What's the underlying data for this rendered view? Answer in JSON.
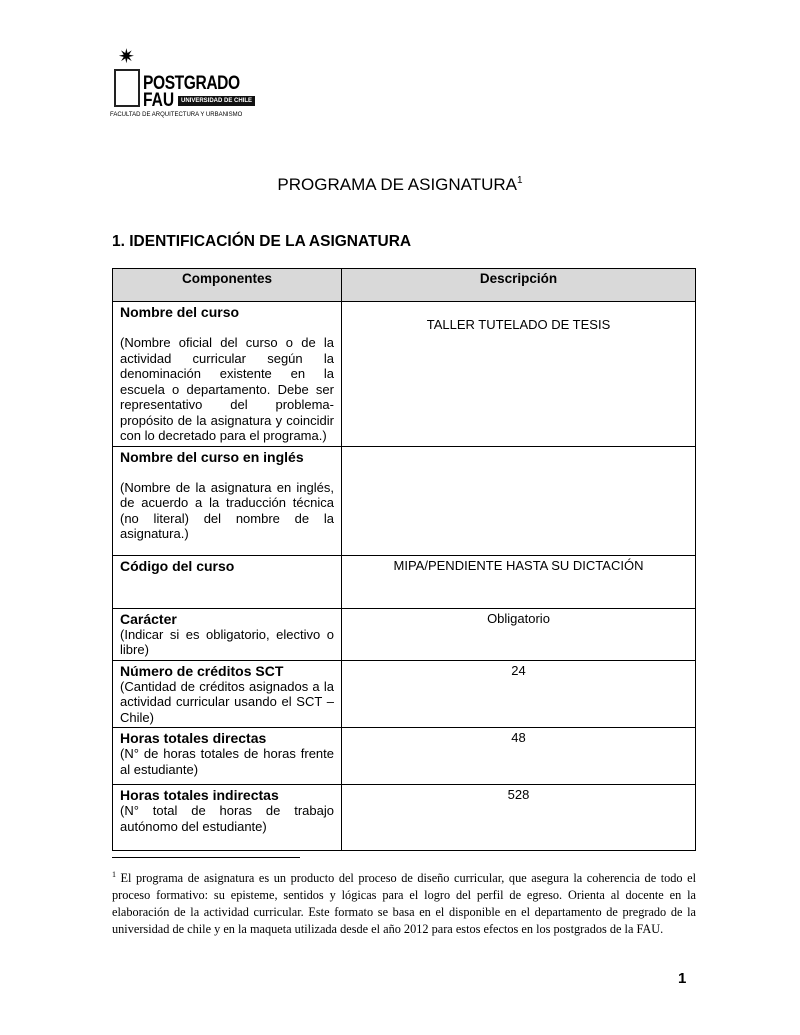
{
  "logo": {
    "star": "✷",
    "line1": "POSTGRADO",
    "line2": "FAU",
    "badge": "UNIVERSIDAD DE CHILE",
    "faculty": "FACULTAD DE ARQUITECTURA Y URBANISMO"
  },
  "title": "PROGRAMA DE ASIGNATURA",
  "title_note": "1",
  "section": "1. IDENTIFICACIÓN DE LA ASIGNATURA",
  "table": {
    "headers": [
      "Componentes",
      "Descripción"
    ],
    "rows": [
      {
        "name": "Nombre del curso",
        "desc": "(Nombre oficial del curso o de la actividad curricular según la denominación existente en la escuela o departamento. Debe ser representativo del problema-propósito de la asignatura y coincidir con lo decretado para el programa.)",
        "value": "TALLER TUTELADO DE TESIS"
      },
      {
        "name": "Nombre del curso en inglés",
        "desc": "(Nombre de la asignatura en inglés, de acuerdo a la traducción técnica (no literal) del nombre de la asignatura.)",
        "value": ""
      },
      {
        "name": "Código del curso",
        "desc": "",
        "value": "MIPA/PENDIENTE HASTA SU DICTACIÓN"
      },
      {
        "name": "Carácter",
        "desc": "(Indicar si es obligatorio, electivo o libre)",
        "value": "Obligatorio"
      },
      {
        "name": "Número de créditos SCT",
        "desc": "(Cantidad de créditos asignados a la actividad curricular usando el SCT – Chile)",
        "value": "24"
      },
      {
        "name": "Horas totales directas",
        "desc": "(N° de horas totales de horas frente al estudiante)",
        "value": "48"
      },
      {
        "name": "Horas totales indirectas",
        "desc": "(N° total de horas de trabajo autónomo del estudiante)",
        "value": "528"
      }
    ]
  },
  "footnote": {
    "mark": "1",
    "text": " El programa de asignatura es un producto del proceso de diseño curricular, que asegura la coherencia de todo el proceso formativo: su episteme, sentidos y lógicas para el logro del perfil de egreso. Orienta al docente en la elaboración de la actividad curricular. Este formato se basa en el disponible en el departamento de pregrado de la universidad de chile y en la maqueta utilizada desde el año 2012 para estos efectos en los postgrados de la FAU."
  },
  "page_number": "1"
}
